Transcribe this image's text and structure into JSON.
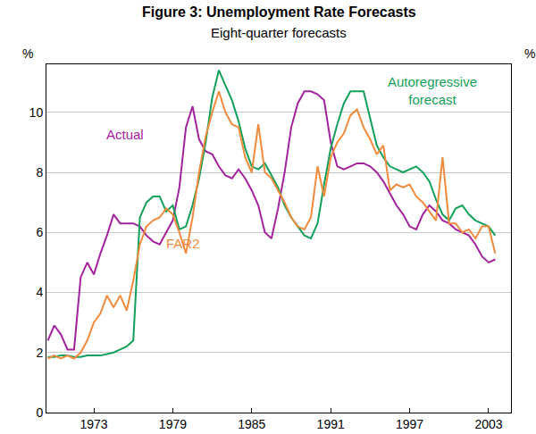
{
  "chart_data": {
    "type": "line",
    "title": "Figure 3: Unemployment Rate Forecasts",
    "subtitle": "Eight-quarter forecasts",
    "ylabel": "%",
    "x": [
      1969.5,
      1970.0,
      1970.5,
      1971.0,
      1971.5,
      1972.0,
      1972.5,
      1973.0,
      1973.5,
      1974.0,
      1974.5,
      1975.0,
      1975.5,
      1976.0,
      1976.5,
      1977.0,
      1977.5,
      1978.0,
      1978.5,
      1979.0,
      1979.5,
      1980.0,
      1980.5,
      1981.0,
      1981.5,
      1982.0,
      1982.5,
      1983.0,
      1983.5,
      1984.0,
      1984.5,
      1985.0,
      1985.5,
      1986.0,
      1986.5,
      1987.0,
      1987.5,
      1988.0,
      1988.5,
      1989.0,
      1989.5,
      1990.0,
      1990.5,
      1991.0,
      1991.5,
      1992.0,
      1992.5,
      1993.0,
      1993.5,
      1994.0,
      1994.5,
      1995.0,
      1995.5,
      1996.0,
      1996.5,
      1997.0,
      1997.5,
      1998.0,
      1998.5,
      1999.0,
      1999.5,
      2000.0,
      2000.5,
      2001.0,
      2001.5,
      2002.0,
      2002.5,
      2003.0,
      2003.5
    ],
    "series": [
      {
        "name": "Actual",
        "color": "#a3229e",
        "values": [
          2.4,
          2.9,
          2.6,
          2.1,
          2.1,
          4.5,
          5.0,
          4.6,
          5.3,
          5.9,
          6.6,
          6.3,
          6.3,
          6.3,
          6.2,
          5.9,
          5.7,
          5.6,
          6.0,
          6.4,
          7.5,
          9.5,
          10.2,
          9.1,
          8.7,
          8.6,
          8.2,
          7.9,
          7.8,
          8.1,
          7.8,
          7.4,
          6.9,
          6.0,
          5.8,
          6.8,
          8.0,
          9.5,
          10.3,
          10.7,
          10.7,
          10.6,
          10.4,
          9.0,
          8.2,
          8.1,
          8.2,
          8.3,
          8.3,
          8.2,
          8.0,
          7.7,
          7.3,
          6.9,
          6.6,
          6.2,
          6.1,
          6.6,
          6.9,
          6.7,
          6.4,
          6.3,
          6.1,
          6.0,
          5.9,
          5.6,
          5.2,
          5.0,
          5.1
        ]
      },
      {
        "name": "Autoregressive forecast",
        "color": "#12a05a",
        "values": [
          1.85,
          1.85,
          1.9,
          1.9,
          1.85,
          1.85,
          1.9,
          1.9,
          1.9,
          1.95,
          2.0,
          2.1,
          2.2,
          2.4,
          6.5,
          7.0,
          7.2,
          7.2,
          6.7,
          6.9,
          6.1,
          6.2,
          6.9,
          7.8,
          9.0,
          10.5,
          11.4,
          10.9,
          10.4,
          9.7,
          8.8,
          8.2,
          8.1,
          8.3,
          7.9,
          7.5,
          6.9,
          6.5,
          6.2,
          5.9,
          5.8,
          6.3,
          7.6,
          8.8,
          9.6,
          10.3,
          10.7,
          10.7,
          10.7,
          9.8,
          8.9,
          8.5,
          8.2,
          8.1,
          8.0,
          8.1,
          8.2,
          8.0,
          7.7,
          7.1,
          6.6,
          6.4,
          6.8,
          6.9,
          6.6,
          6.4,
          6.3,
          6.2,
          5.9
        ]
      },
      {
        "name": "FAR2",
        "color": "#f08a3c",
        "values": [
          1.8,
          1.9,
          1.8,
          1.9,
          1.8,
          2.0,
          2.4,
          3.0,
          3.3,
          3.9,
          3.5,
          3.9,
          3.4,
          4.4,
          5.6,
          6.2,
          6.4,
          6.5,
          6.8,
          6.6,
          6.0,
          5.3,
          6.5,
          8.0,
          9.2,
          10.0,
          10.7,
          10.0,
          9.6,
          9.5,
          8.5,
          8.0,
          9.6,
          8.0,
          7.8,
          7.4,
          7.0,
          6.5,
          6.2,
          6.1,
          6.5,
          8.2,
          7.2,
          8.5,
          9.0,
          9.3,
          9.9,
          10.1,
          9.5,
          9.1,
          8.6,
          8.9,
          7.4,
          7.6,
          7.5,
          7.6,
          7.2,
          7.0,
          6.7,
          6.4,
          8.5,
          6.3,
          6.3,
          6.0,
          6.1,
          5.8,
          6.2,
          6.2,
          5.3
        ]
      }
    ],
    "xlim": [
      1969.4,
      2004.7
    ],
    "xticks": [
      1973,
      1979,
      1985,
      1991,
      1997,
      2003
    ],
    "ylim": [
      0,
      11.6
    ],
    "yticks": [
      0,
      2,
      4,
      6,
      8,
      10
    ],
    "grid": true
  }
}
